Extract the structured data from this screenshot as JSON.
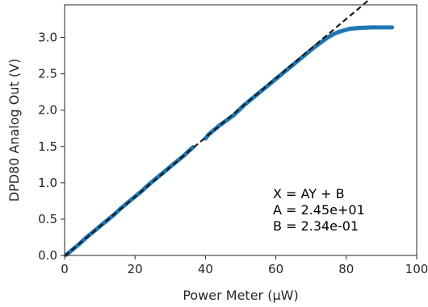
{
  "chart_data": {
    "type": "scatter",
    "title": "",
    "xlabel": "Power Meter (μW)",
    "ylabel": "DPD80 Analog Out (V)",
    "xlim": [
      0,
      100
    ],
    "ylim": [
      0,
      3.45
    ],
    "x_ticks": [
      0,
      20,
      40,
      60,
      80,
      100
    ],
    "x_tick_labels": [
      "0",
      "20",
      "40",
      "60",
      "80",
      "100"
    ],
    "y_ticks": [
      0,
      0.5,
      1.0,
      1.5,
      2.0,
      2.5,
      3.0
    ],
    "y_tick_labels": [
      "0.0",
      "0.5",
      "1.0",
      "1.5",
      "2.0",
      "2.5",
      "3.0"
    ],
    "grid": false,
    "colors": {
      "points": "#1f77b4",
      "fit": "#1a1a1a",
      "axes": "#262626"
    },
    "annotation_lines": [
      "X = AY + B",
      "A = 2.45e+01",
      "B = 2.34e-01"
    ],
    "fit_line": {
      "style": "dashed",
      "A": 24.5,
      "B": 0.234,
      "x_range": [
        0,
        87
      ]
    },
    "series": [
      {
        "points": [
          [
            0.5,
            0.01
          ],
          [
            2,
            0.07
          ],
          [
            4,
            0.15
          ],
          [
            6,
            0.24
          ],
          [
            8,
            0.32
          ],
          [
            10,
            0.4
          ],
          [
            12,
            0.48
          ],
          [
            14,
            0.56
          ],
          [
            16,
            0.65
          ],
          [
            18,
            0.73
          ],
          [
            20,
            0.81
          ],
          [
            22,
            0.89
          ],
          [
            24,
            0.98
          ],
          [
            26,
            1.06
          ],
          [
            28,
            1.14
          ],
          [
            30,
            1.22
          ],
          [
            32,
            1.3
          ],
          [
            34,
            1.38
          ],
          [
            35.5,
            1.45
          ],
          [
            36.5,
            1.49
          ],
          [
            40,
            1.61
          ],
          [
            41,
            1.67
          ],
          [
            42,
            1.71
          ],
          [
            44,
            1.79
          ],
          [
            46,
            1.86
          ],
          [
            48,
            1.93
          ],
          [
            49.5,
            2.0
          ],
          [
            51,
            2.07
          ],
          [
            53,
            2.15
          ],
          [
            55,
            2.23
          ],
          [
            57,
            2.31
          ],
          [
            59,
            2.39
          ],
          [
            61,
            2.47
          ],
          [
            63,
            2.55
          ],
          [
            65,
            2.63
          ],
          [
            67,
            2.71
          ],
          [
            69,
            2.79
          ],
          [
            71,
            2.87
          ],
          [
            73,
            2.94
          ],
          [
            75,
            3.01
          ],
          [
            76.5,
            3.05
          ],
          [
            78,
            3.08
          ],
          [
            79.5,
            3.1
          ],
          [
            81,
            3.12
          ],
          [
            83,
            3.13
          ],
          [
            85,
            3.135
          ],
          [
            87,
            3.14
          ],
          [
            89,
            3.14
          ],
          [
            91,
            3.14
          ],
          [
            93,
            3.14
          ]
        ]
      }
    ]
  }
}
